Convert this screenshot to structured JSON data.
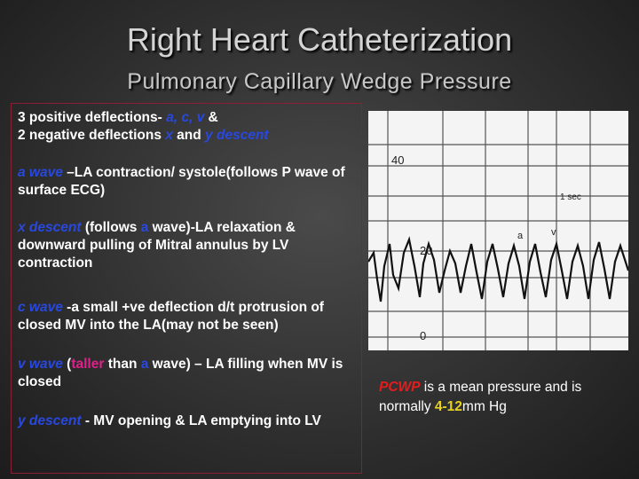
{
  "header": {
    "title": "Right Heart Catheterization",
    "subtitle": "Pulmonary Capillary Wedge Pressure"
  },
  "body": {
    "p1": [
      "3 positive deflections- ",
      "a, c, v",
      " &",
      "2 negative deflections ",
      "x",
      " and ",
      "y descent"
    ],
    "p2": [
      "a wave",
      " –LA contraction/ systole(follows P wave of surface ECG)"
    ],
    "p3": [
      "x descent",
      " (follows ",
      "a",
      " wave)-LA relaxation & downward pulling of Mitral annulus by LV contraction"
    ],
    "p4": [
      "c wave",
      " -a small +ve deflection d/t protrusion of closed MV into the LA(may not be seen)"
    ],
    "p5": [
      "v wave",
      " (",
      "taller",
      " than ",
      "a",
      " wave) – LA filling when MV is closed"
    ],
    "p6": [
      "y descent",
      " - MV opening & LA emptying into LV"
    ]
  },
  "figure": {
    "labels": [
      "40",
      "1 sec",
      "20",
      "a",
      "v",
      "0"
    ]
  },
  "note": [
    "PCWP",
    " is a mean pressure and is normally ",
    "4-12",
    "mm Hg"
  ]
}
